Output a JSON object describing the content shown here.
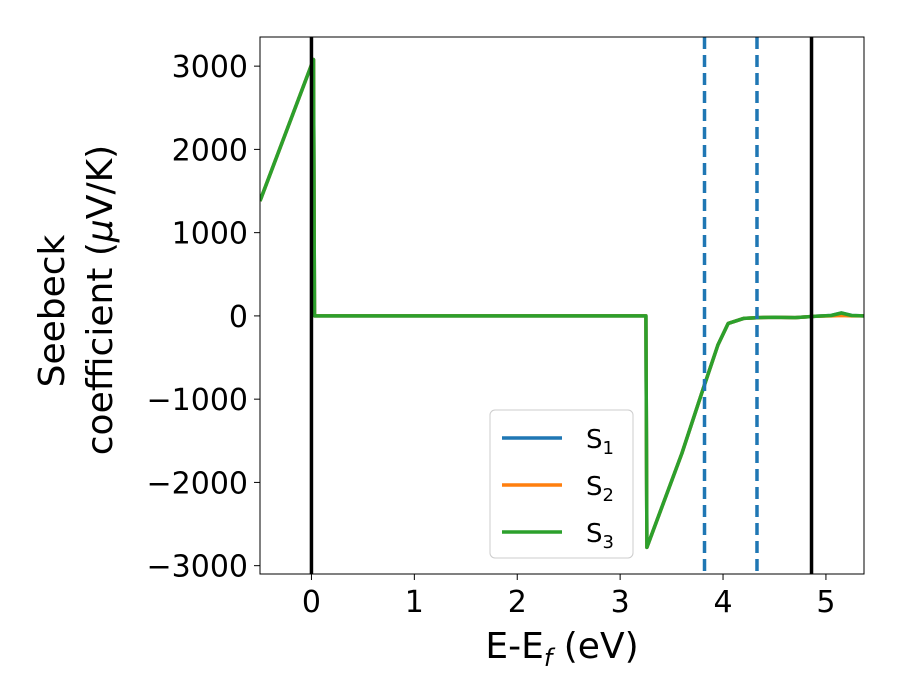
{
  "chart_data": {
    "type": "line",
    "title": "",
    "xlabel": {
      "main": "E-E",
      "sub": "f",
      "unit": " (eV)"
    },
    "ylabel": {
      "line1": "Seebeck",
      "line2_pre": "coefficient  (",
      "mu": "μ",
      "line2_post": "V/K)"
    },
    "xlim": [
      -0.5,
      5.37
    ],
    "ylim": [
      -3100,
      3350
    ],
    "xticks": [
      0,
      1,
      2,
      3,
      4,
      5
    ],
    "xtick_labels": [
      "0",
      "1",
      "2",
      "3",
      "4",
      "5"
    ],
    "yticks": [
      3000,
      2000,
      1000,
      0,
      -1000,
      -2000,
      -3000
    ],
    "ytick_labels": [
      "3000",
      "2000",
      "1000",
      "0",
      "−1000",
      "−2000",
      "−3000"
    ],
    "legend_position": "lower-right",
    "series": [
      {
        "name": "S",
        "sub": "1",
        "color": "#1f77b4",
        "x": [
          -0.5,
          0.02,
          0.03,
          3.25,
          3.26,
          3.6,
          3.8,
          3.95,
          4.05,
          4.2,
          4.35,
          4.5,
          4.7,
          4.9,
          5.05,
          5.15,
          5.25,
          5.37
        ],
        "y": [
          1380,
          3080,
          0,
          0,
          -2780,
          -1650,
          -900,
          -350,
          -90,
          -30,
          -20,
          -15,
          -20,
          -5,
          5,
          35,
          5,
          0
        ]
      },
      {
        "name": "S",
        "sub": "2",
        "color": "#ff7f0e",
        "x": [
          -0.5,
          0.02,
          0.03,
          3.25,
          3.26,
          3.6,
          3.8,
          3.95,
          4.05,
          4.2,
          4.35,
          4.5,
          4.7,
          4.9,
          5.05,
          5.15,
          5.25,
          5.37
        ],
        "y": [
          1380,
          3080,
          0,
          0,
          -2780,
          -1650,
          -900,
          -350,
          -90,
          -30,
          -20,
          -15,
          -20,
          -5,
          0,
          5,
          0,
          0
        ]
      },
      {
        "name": "S",
        "sub": "3",
        "color": "#2ca02c",
        "x": [
          -0.5,
          0.02,
          0.03,
          3.25,
          3.26,
          3.6,
          3.8,
          3.95,
          4.05,
          4.2,
          4.35,
          4.5,
          4.7,
          4.9,
          5.05,
          5.15,
          5.25,
          5.37
        ],
        "y": [
          1380,
          3080,
          0,
          0,
          -2780,
          -1650,
          -900,
          -350,
          -90,
          -30,
          -20,
          -15,
          -20,
          -5,
          5,
          35,
          5,
          0
        ]
      }
    ],
    "vlines": [
      {
        "x": 0.0,
        "style": "solid",
        "color": "#000000"
      },
      {
        "x": 4.86,
        "style": "solid",
        "color": "#000000"
      },
      {
        "x": 3.82,
        "style": "dashed",
        "color": "#1f77b4"
      },
      {
        "x": 4.33,
        "style": "dashed",
        "color": "#1f77b4"
      }
    ]
  }
}
